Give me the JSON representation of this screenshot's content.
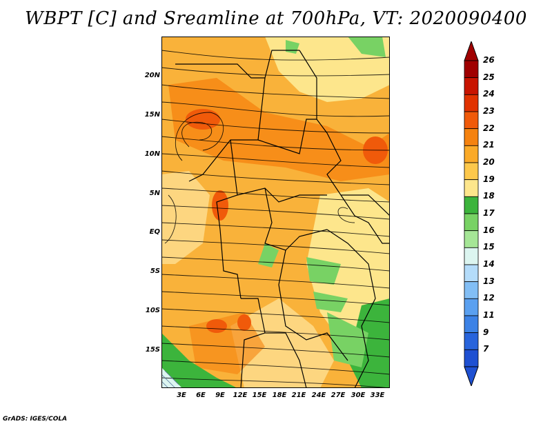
{
  "title": "WBPT [C] and Sreamline at 700hPa, VT: 2020090400",
  "footer": "GrADS: IGES/COLA",
  "lat_labels": [
    "20N",
    "15N",
    "10N",
    "5N",
    "EQ",
    "5S",
    "10S",
    "15S"
  ],
  "lon_labels": [
    "3E",
    "6E",
    "9E",
    "12E",
    "15E",
    "18E",
    "21E",
    "24E",
    "27E",
    "30E",
    "33E"
  ],
  "colorbar": {
    "labels": [
      "26",
      "25",
      "24",
      "23",
      "22",
      "21",
      "20",
      "19",
      "18",
      "17",
      "16",
      "15",
      "14",
      "13",
      "12",
      "11",
      "9",
      "7"
    ],
    "colors": [
      "#a00000",
      "#c81400",
      "#e13200",
      "#f05a0a",
      "#f5820f",
      "#fbaa28",
      "#fdc84b",
      "#fde68c",
      "#3cb43c",
      "#78d264",
      "#a5e696",
      "#dcf5f0",
      "#b4dcfa",
      "#82bef5",
      "#5aa0f0",
      "#3c82e6",
      "#2864dc",
      "#1e50d2"
    ]
  }
}
